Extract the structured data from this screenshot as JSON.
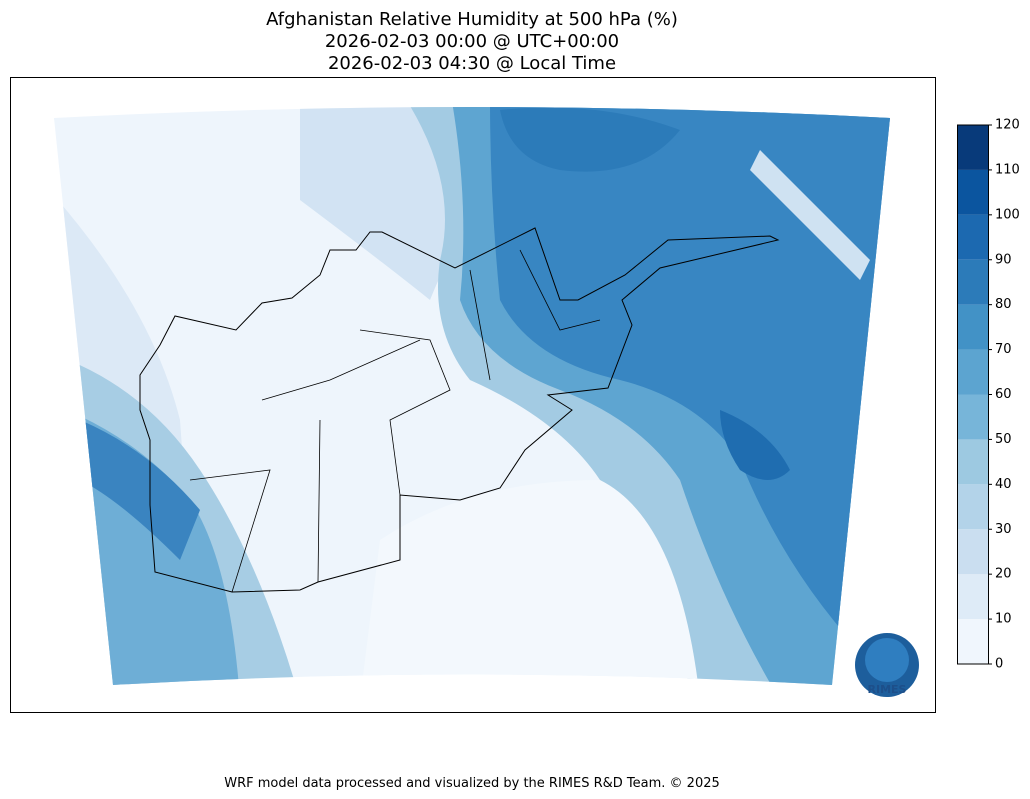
{
  "title": [
    "Afghanistan Relative Humidity at 500 hPa (%)",
    "2026-02-03 00:00 @ UTC+00:00",
    "2026-02-03 04:30 @ Local Time"
  ],
  "colorbar": {
    "ticks": [
      0,
      10,
      20,
      30,
      40,
      50,
      60,
      70,
      80,
      90,
      100,
      110,
      120
    ],
    "colors": [
      "#f0f6fd",
      "#deebf7",
      "#cadef0",
      "#b3d3e9",
      "#9dc9e1",
      "#77b5d9",
      "#5ca4d0",
      "#4292c6",
      "#2c7bb9",
      "#1c69b0",
      "#0b559f",
      "#083a7a"
    ]
  },
  "logo": "RIMES",
  "footer": "WRF model data processed and visualized by the RIMES R&D Team. © 2025"
}
